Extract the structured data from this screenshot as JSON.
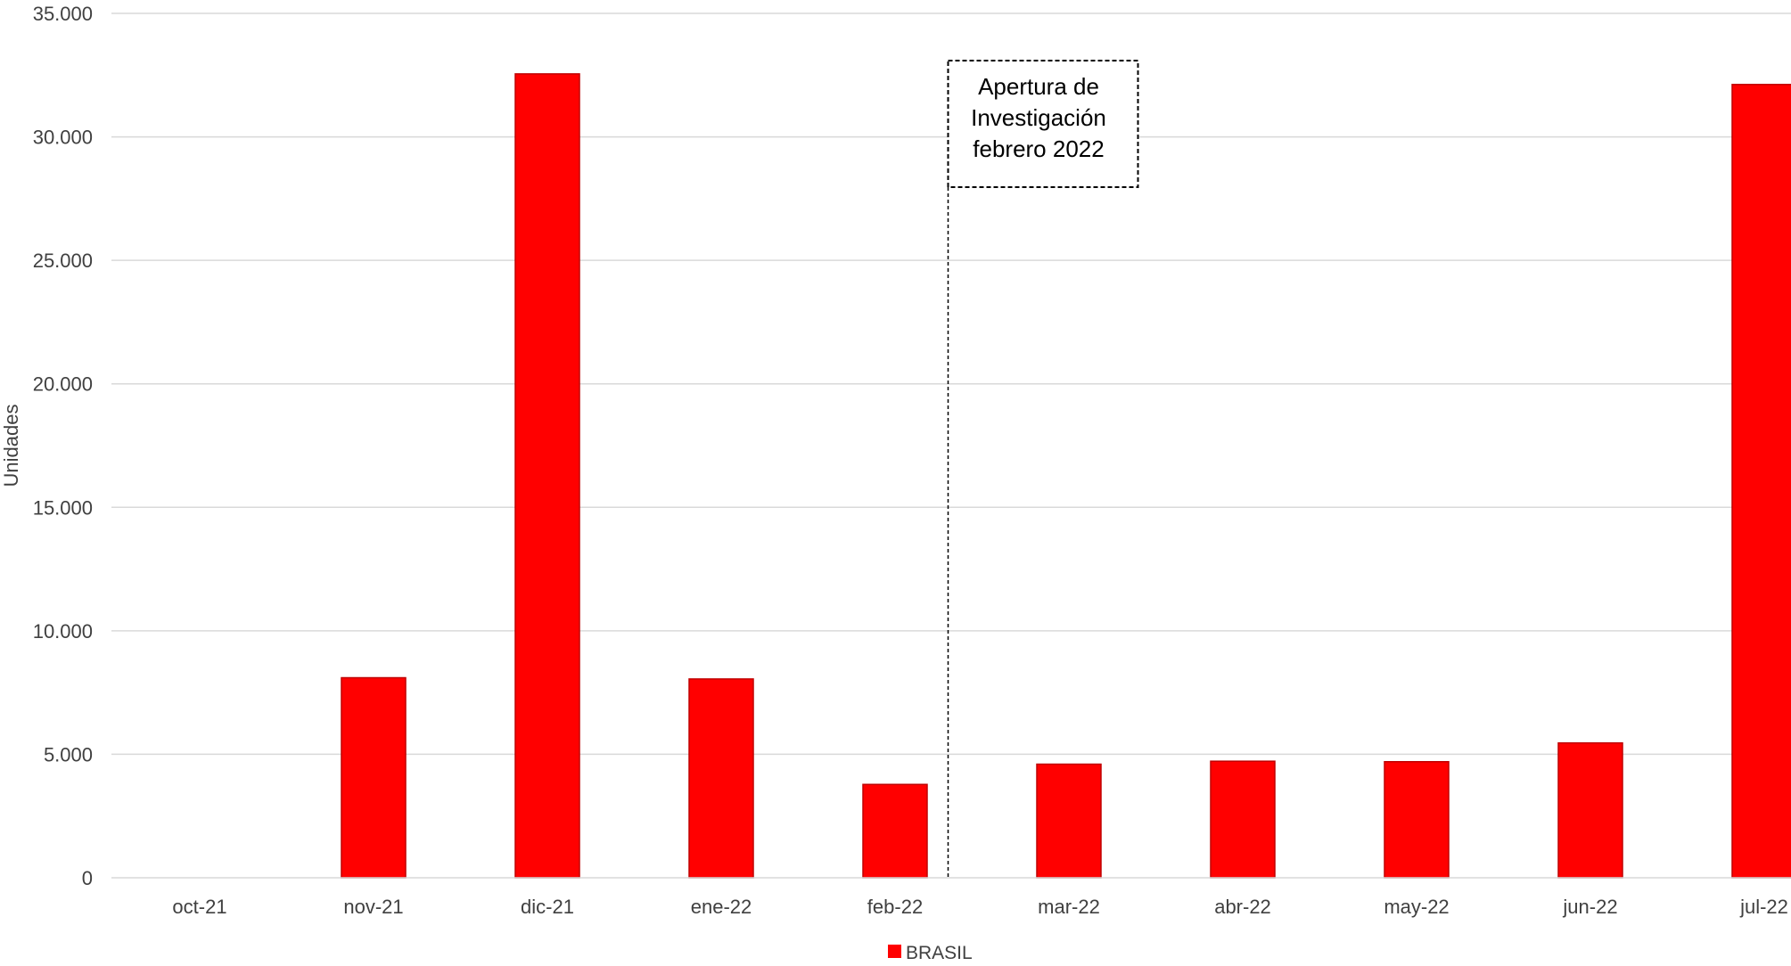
{
  "chart_data": {
    "type": "bar",
    "title": "",
    "xlabel": "",
    "ylabel": "Unidades",
    "ylim": [
      0,
      35000
    ],
    "y_ticks": [
      0,
      5000,
      10000,
      15000,
      20000,
      25000,
      30000,
      35000
    ],
    "y_tick_labels": [
      "0",
      "5.000",
      "10.000",
      "15.000",
      "20.000",
      "25.000",
      "30.000",
      "35.000"
    ],
    "categories": [
      "oct-21",
      "nov-21",
      "dic-21",
      "ene-22",
      "feb-22",
      "mar-22",
      "abr-22",
      "may-22",
      "jun-22",
      "jul-22"
    ],
    "series": [
      {
        "name": "BRASIL",
        "color": "#ff0000",
        "edge_color": "#c00000",
        "values": [
          0,
          8100,
          32550,
          8050,
          3780,
          4600,
          4720,
          4700,
          5460,
          32120
        ]
      }
    ],
    "grid": true,
    "grid_color": "#d9d9d9",
    "legend_position": "bottom-center",
    "annotation": {
      "lines": [
        "Apertura de",
        "Investigación",
        "febrero 2022"
      ],
      "between_categories": [
        "feb-22",
        "mar-22"
      ],
      "style": "dashed-box-with-vertical-line"
    }
  }
}
